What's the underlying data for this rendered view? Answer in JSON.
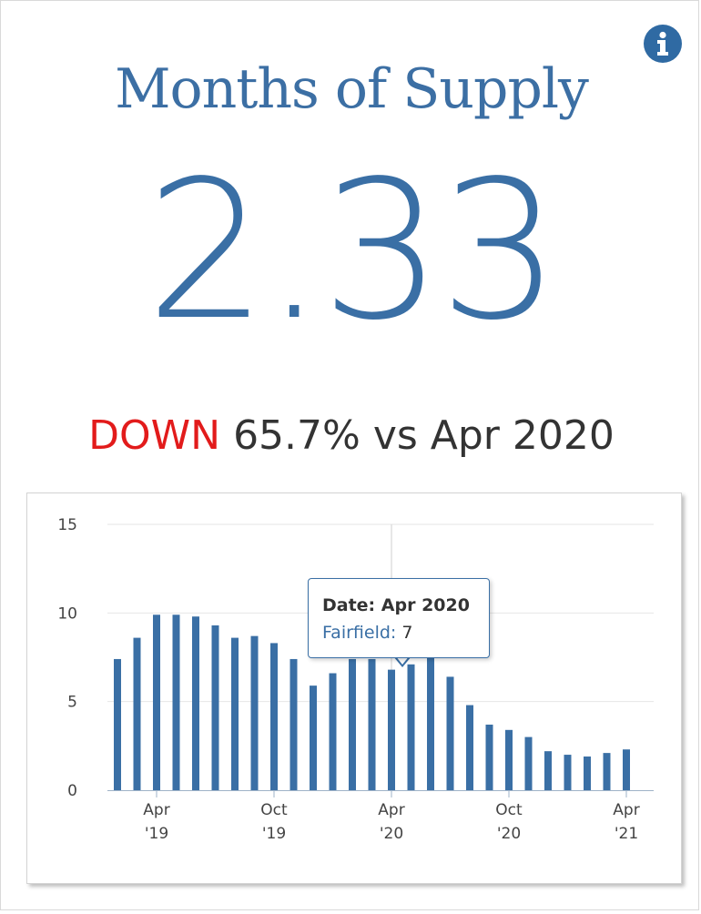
{
  "metric": {
    "title": "Months of Supply",
    "value": "2.33",
    "direction": "DOWN",
    "comparison": "65.7% vs Apr 2020"
  },
  "colors": {
    "accent": "#3a6fa5",
    "down": "#e21b1b",
    "grid": "#e6e6e6"
  },
  "icons": {
    "info": "info-icon"
  },
  "tooltip": {
    "date_text": "Date: Apr 2020",
    "series_label": "Fairfield:",
    "value_text": "7"
  },
  "chart_data": {
    "type": "bar",
    "categories": [
      "Feb '19",
      "Mar '19",
      "Apr '19",
      "May '19",
      "Jun '19",
      "Jul '19",
      "Aug '19",
      "Sep '19",
      "Oct '19",
      "Nov '19",
      "Dec '19",
      "Jan '20",
      "Feb '20",
      "Mar '20",
      "Apr '20",
      "May '20",
      "Jun '20",
      "Jul '20",
      "Aug '20",
      "Sep '20",
      "Oct '20",
      "Nov '20",
      "Dec '20",
      "Jan '21",
      "Feb '21",
      "Mar '21",
      "Apr '21"
    ],
    "series": [
      {
        "name": "Fairfield",
        "values": [
          7.4,
          8.6,
          9.9,
          9.9,
          9.8,
          9.3,
          8.6,
          8.7,
          8.3,
          7.4,
          5.9,
          6.6,
          7.4,
          7.4,
          6.8,
          7.1,
          7.5,
          6.4,
          4.8,
          3.7,
          3.4,
          3.0,
          2.2,
          2.0,
          1.9,
          2.1,
          2.3
        ]
      }
    ],
    "highlight_index": 14,
    "ylim": [
      0,
      15
    ],
    "yticks": [
      0,
      5,
      10,
      15
    ],
    "xtick_labels": [
      {
        "index": 2,
        "line1": "Apr",
        "line2": "'19"
      },
      {
        "index": 8,
        "line1": "Oct",
        "line2": "'19"
      },
      {
        "index": 14,
        "line1": "Apr",
        "line2": "'20"
      },
      {
        "index": 20,
        "line1": "Oct",
        "line2": "'20"
      },
      {
        "index": 26,
        "line1": "Apr",
        "line2": "'21"
      }
    ],
    "grid": true,
    "legend": "none"
  }
}
